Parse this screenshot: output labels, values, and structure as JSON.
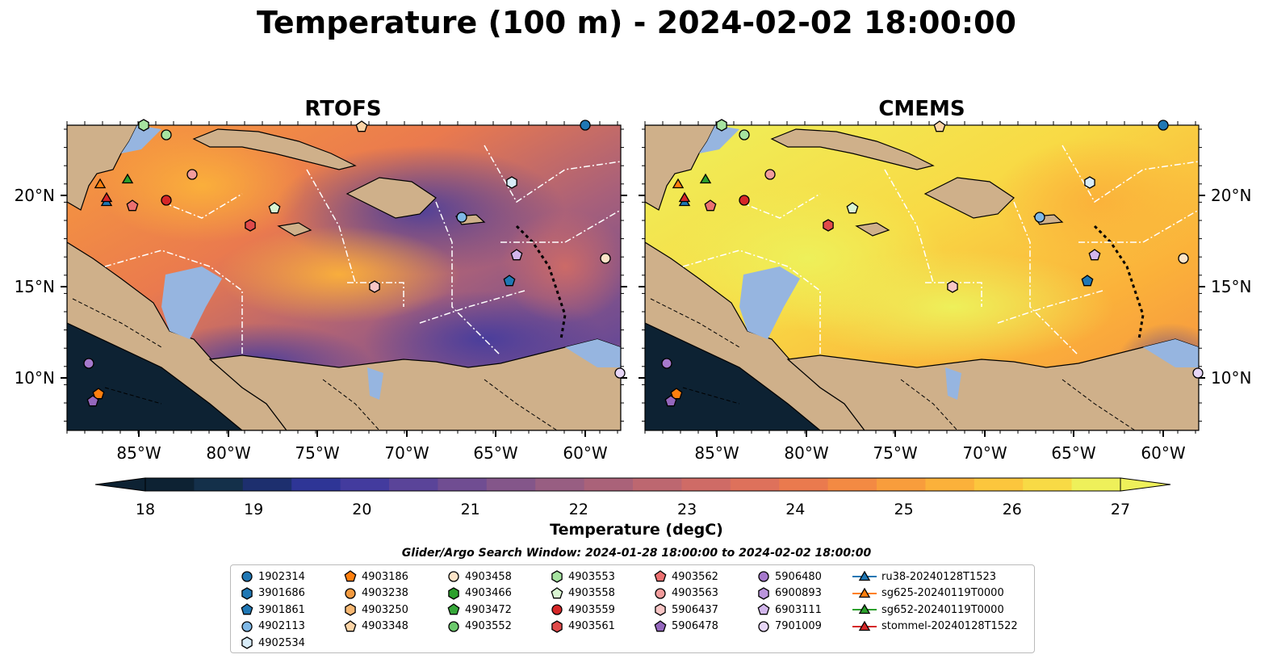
{
  "title": "Temperature (100 m) - 2024-02-02 18:00:00",
  "panels": [
    {
      "title": "RTOFS"
    },
    {
      "title": "CMEMS"
    }
  ],
  "axes": {
    "lon_ticks": [
      "85°W",
      "80°W",
      "75°W",
      "70°W",
      "65°W",
      "60°W"
    ],
    "lat_ticks": [
      "20°N",
      "15°N",
      "10°N"
    ],
    "lon_range": [
      -89,
      -58
    ],
    "lat_range": [
      7,
      24
    ]
  },
  "colorbar": {
    "label": "Temperature (degC)",
    "min": 18,
    "max": 27,
    "ticks": [
      "18",
      "19",
      "20",
      "21",
      "22",
      "23",
      "24",
      "25",
      "26",
      "27"
    ],
    "colors": [
      "#0d2233",
      "#14304a",
      "#1d2f6e",
      "#2e3596",
      "#433b9e",
      "#5a4499",
      "#704d92",
      "#84568a",
      "#985e82",
      "#aa6279",
      "#bd6770",
      "#cf6b66",
      "#de715b",
      "#ea7a4e",
      "#f38a43",
      "#f89d3c",
      "#fbb13a",
      "#fcc63d",
      "#f8da45",
      "#eef05a"
    ]
  },
  "colors": {
    "land": "#cfb08a",
    "shelf": "#96b5e0",
    "deep": "#0d2233"
  },
  "search_window": "Glider/Argo Search Window: 2024-01-28 18:00:00 to 2024-02-02 18:00:00",
  "legend": [
    {
      "label": "1902314",
      "marker": "circle",
      "color": "#1f77b4"
    },
    {
      "label": "3901686",
      "marker": "hexagon",
      "color": "#1f77b4"
    },
    {
      "label": "3901861",
      "marker": "pentagon",
      "color": "#1f77b4"
    },
    {
      "label": "4902113",
      "marker": "circle",
      "color": "#7fb8e6"
    },
    {
      "label": "4902534",
      "marker": "hexagon",
      "color": "#d8ecf8"
    },
    {
      "label": "4903186",
      "marker": "pentagon",
      "color": "#ff7f0e"
    },
    {
      "label": "4903238",
      "marker": "circle",
      "color": "#f39a3f"
    },
    {
      "label": "4903250",
      "marker": "hexagon",
      "color": "#f7b873"
    },
    {
      "label": "4903348",
      "marker": "pentagon",
      "color": "#fcd4a6"
    },
    {
      "label": "4903458",
      "marker": "circle",
      "color": "#fde4c8"
    },
    {
      "label": "4903466",
      "marker": "hexagon",
      "color": "#2ca02c"
    },
    {
      "label": "4903472",
      "marker": "pentagon",
      "color": "#36a83a"
    },
    {
      "label": "4903552",
      "marker": "circle",
      "color": "#6cc96c"
    },
    {
      "label": "4903553",
      "marker": "hexagon",
      "color": "#a6e3a0"
    },
    {
      "label": "4903558",
      "marker": "pentagon",
      "color": "#d9f5d2"
    },
    {
      "label": "4903559",
      "marker": "circle",
      "color": "#d62728"
    },
    {
      "label": "4903561",
      "marker": "hexagon",
      "color": "#e04a4a"
    },
    {
      "label": "4903562",
      "marker": "pentagon",
      "color": "#ec7070"
    },
    {
      "label": "4903563",
      "marker": "circle",
      "color": "#f29c9c"
    },
    {
      "label": "5906437",
      "marker": "hexagon",
      "color": "#f8c6c6"
    },
    {
      "label": "5906478",
      "marker": "pentagon",
      "color": "#9467bd"
    },
    {
      "label": "5906480",
      "marker": "circle",
      "color": "#a679cc"
    },
    {
      "label": "6900893",
      "marker": "hexagon",
      "color": "#bb95dd"
    },
    {
      "label": "6903111",
      "marker": "pentagon",
      "color": "#d2b6ec"
    },
    {
      "label": "7901009",
      "marker": "circle",
      "color": "#e7d6f7"
    },
    {
      "label": "ru38-20240128T1523",
      "marker": "triangle-line",
      "color": "#1f77b4"
    },
    {
      "label": "sg625-20240119T0000",
      "marker": "triangle-line",
      "color": "#ff7f0e"
    },
    {
      "label": "sg652-20240119T0000",
      "marker": "triangle-line",
      "color": "#2ca02c"
    },
    {
      "label": "stommel-20240128T1522",
      "marker": "triangle-line",
      "color": "#d62728"
    }
  ]
}
